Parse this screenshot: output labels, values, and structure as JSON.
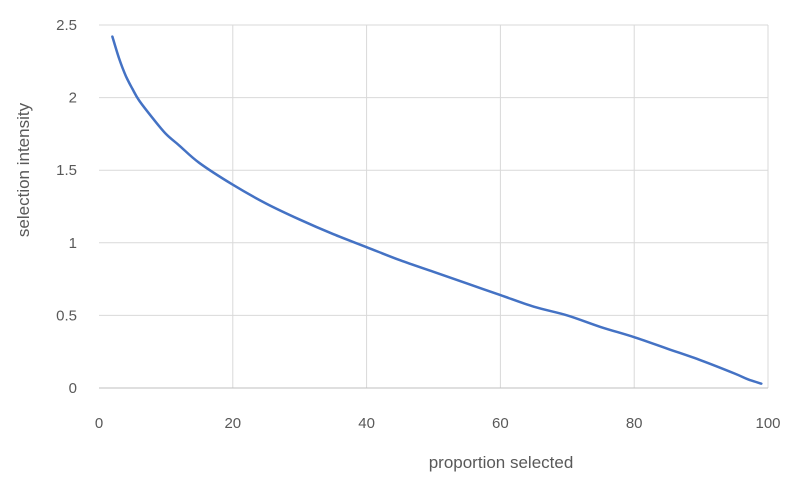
{
  "chart_data": {
    "type": "line",
    "title": "",
    "xlabel": "proportion selected",
    "ylabel": "selection intensity",
    "xlim": [
      0,
      100
    ],
    "ylim": [
      0,
      2.5
    ],
    "x_ticks": [
      0,
      20,
      40,
      60,
      80,
      100
    ],
    "y_ticks": [
      0,
      0.5,
      1,
      1.5,
      2,
      2.5
    ],
    "x_tick_labels": [
      "0",
      "20",
      "40",
      "60",
      "80",
      "100"
    ],
    "y_tick_labels": [
      "0",
      "0.5",
      "1",
      "1.5",
      "2",
      "2.5"
    ],
    "grid": true,
    "legend": "none",
    "series": [
      {
        "color": "#4472c4",
        "x": [
          2,
          3,
          4,
          5,
          6,
          8,
          10,
          12,
          15,
          20,
          25,
          30,
          35,
          40,
          45,
          50,
          55,
          60,
          65,
          70,
          75,
          80,
          85,
          90,
          95,
          97,
          99
        ],
        "y": [
          2.42,
          2.27,
          2.15,
          2.06,
          1.98,
          1.86,
          1.75,
          1.67,
          1.55,
          1.4,
          1.27,
          1.16,
          1.06,
          0.97,
          0.88,
          0.8,
          0.72,
          0.64,
          0.56,
          0.5,
          0.42,
          0.35,
          0.27,
          0.19,
          0.1,
          0.06,
          0.03
        ]
      }
    ]
  }
}
